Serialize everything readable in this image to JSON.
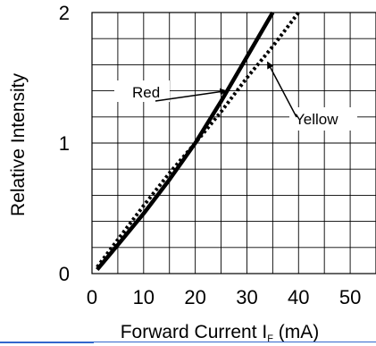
{
  "chart_data": {
    "type": "line",
    "xlabel": "Forward Current I",
    "xlabel_subscript": "F",
    "xlabel_unit": " (mA)",
    "ylabel": "Relative Intensity",
    "xlim": [
      0,
      55
    ],
    "ylim": [
      0,
      2
    ],
    "x_ticks": [
      "0",
      "10",
      "20",
      "30",
      "40",
      "50"
    ],
    "y_ticks": [
      "0",
      "1",
      "2"
    ],
    "grid": true,
    "series": [
      {
        "name": "Red",
        "style": "solid",
        "color": "#000000",
        "x": [
          1,
          5,
          10,
          15,
          20,
          25,
          30,
          35
        ],
        "y": [
          0.03,
          0.22,
          0.46,
          0.72,
          1.0,
          1.32,
          1.66,
          2.0
        ]
      },
      {
        "name": "Yellow",
        "style": "dotted",
        "color": "#000000",
        "x": [
          1,
          5,
          10,
          15,
          20,
          25,
          30,
          35,
          40
        ],
        "y": [
          0.05,
          0.26,
          0.52,
          0.77,
          1.0,
          1.24,
          1.5,
          1.74,
          2.0
        ]
      }
    ],
    "annotations": [
      {
        "text": "Red",
        "series": "Red",
        "at_x": 26,
        "at_y": 1.4
      },
      {
        "text": "Yellow",
        "series": "Yellow",
        "at_x": 34,
        "at_y": 1.62
      }
    ]
  }
}
